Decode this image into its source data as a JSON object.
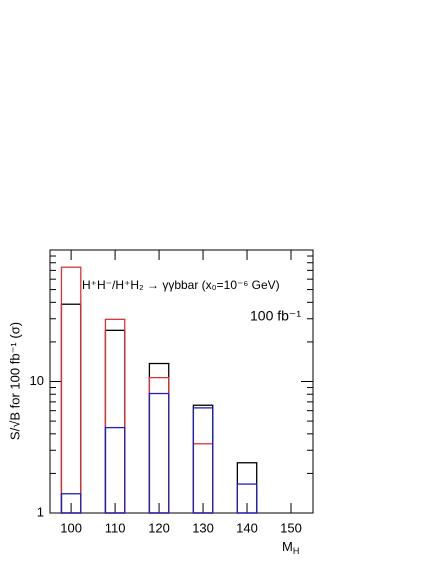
{
  "chart_data": {
    "type": "bar",
    "annotations": [
      "H⁺H⁻/H⁺H₂ → γγbbar (x₀=10⁻⁶ GeV)",
      "100 fb⁻¹"
    ],
    "ylabel": "S/√B for 100 fb⁻¹ (σ)",
    "xlabel": {
      "text": "M",
      "subscript": "H"
    },
    "x": [
      100,
      110,
      120,
      130,
      140
    ],
    "series": [
      {
        "color": "#000000",
        "values": [
          38.7,
          24.5,
          13.7,
          6.6,
          2.41
        ]
      },
      {
        "color": "#e0303a",
        "values": [
          74,
          29.7,
          10.7,
          3.36,
          null
        ]
      },
      {
        "color": "#2020c0",
        "values": [
          1.4,
          4.46,
          8.1,
          6.3,
          1.66
        ]
      }
    ],
    "bar_width": 4.4,
    "xlim": [
      95.2,
      155
    ],
    "xticks": [
      100,
      110,
      120,
      130,
      140,
      150
    ],
    "ylim": [
      1,
      100
    ],
    "yticks": [
      1,
      10
    ],
    "log_y": true
  }
}
